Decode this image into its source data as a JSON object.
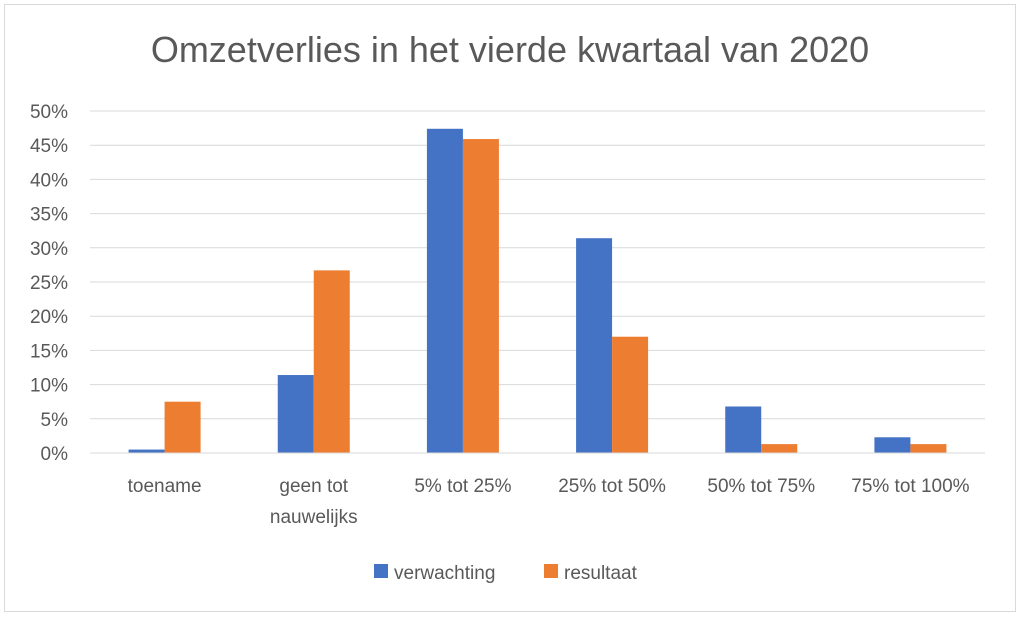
{
  "chart_data": {
    "type": "bar",
    "title": "Omzetverlies in het vierde kwartaal van 2020",
    "categories": [
      [
        "toename"
      ],
      [
        "geen tot",
        "nauwelijks"
      ],
      [
        "5% tot 25%"
      ],
      [
        "25% tot 50%"
      ],
      [
        "50% tot 75%"
      ],
      [
        "75% tot 100%"
      ]
    ],
    "series": [
      {
        "name": "verwachting",
        "color": "#4472C4",
        "values": [
          0.5,
          11.4,
          47.4,
          31.4,
          6.8,
          2.3
        ]
      },
      {
        "name": "resultaat",
        "color": "#ED7D31",
        "values": [
          7.5,
          26.7,
          45.9,
          17.0,
          1.3,
          1.3
        ]
      }
    ],
    "y_ticks": [
      "0%",
      "5%",
      "10%",
      "15%",
      "20%",
      "25%",
      "30%",
      "35%",
      "40%",
      "45%",
      "50%"
    ],
    "ylim": [
      0,
      50
    ],
    "ystep": 5,
    "grid": true,
    "legend_position": "bottom"
  }
}
